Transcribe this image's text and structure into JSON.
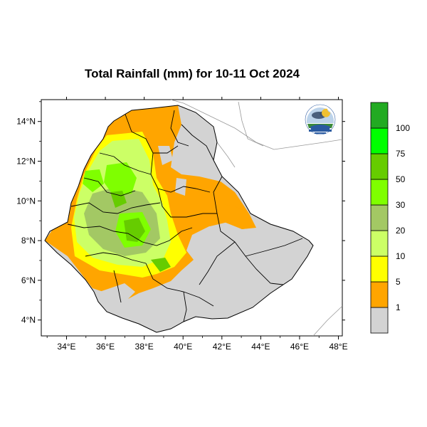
{
  "title": "Total Rainfall (mm) for 10-11 Oct 2024",
  "chart_data": {
    "type": "heatmap",
    "title": "Total Rainfall (mm) for 10-11 Oct 2024",
    "xlabel": "",
    "ylabel": "",
    "x_ticks": [
      "34°E",
      "36°E",
      "38°E",
      "40°E",
      "42°E",
      "44°E",
      "46°E",
      "48°E"
    ],
    "y_ticks": [
      "14°N",
      "12°N",
      "10°N",
      "8°N",
      "6°N",
      "4°N"
    ],
    "xlim": [
      32.7,
      48.2
    ],
    "ylim": [
      3.2,
      15.1
    ],
    "colorbar": {
      "labels": [
        "1",
        "5",
        "10",
        "20",
        "30",
        "50",
        "75",
        "100"
      ],
      "colors": [
        "#d3d3d3",
        "#ffa500",
        "#ffff00",
        "#ccff66",
        "#a3c864",
        "#7fff00",
        "#66cc00",
        "#00ff00",
        "#22aa22"
      ]
    }
  }
}
